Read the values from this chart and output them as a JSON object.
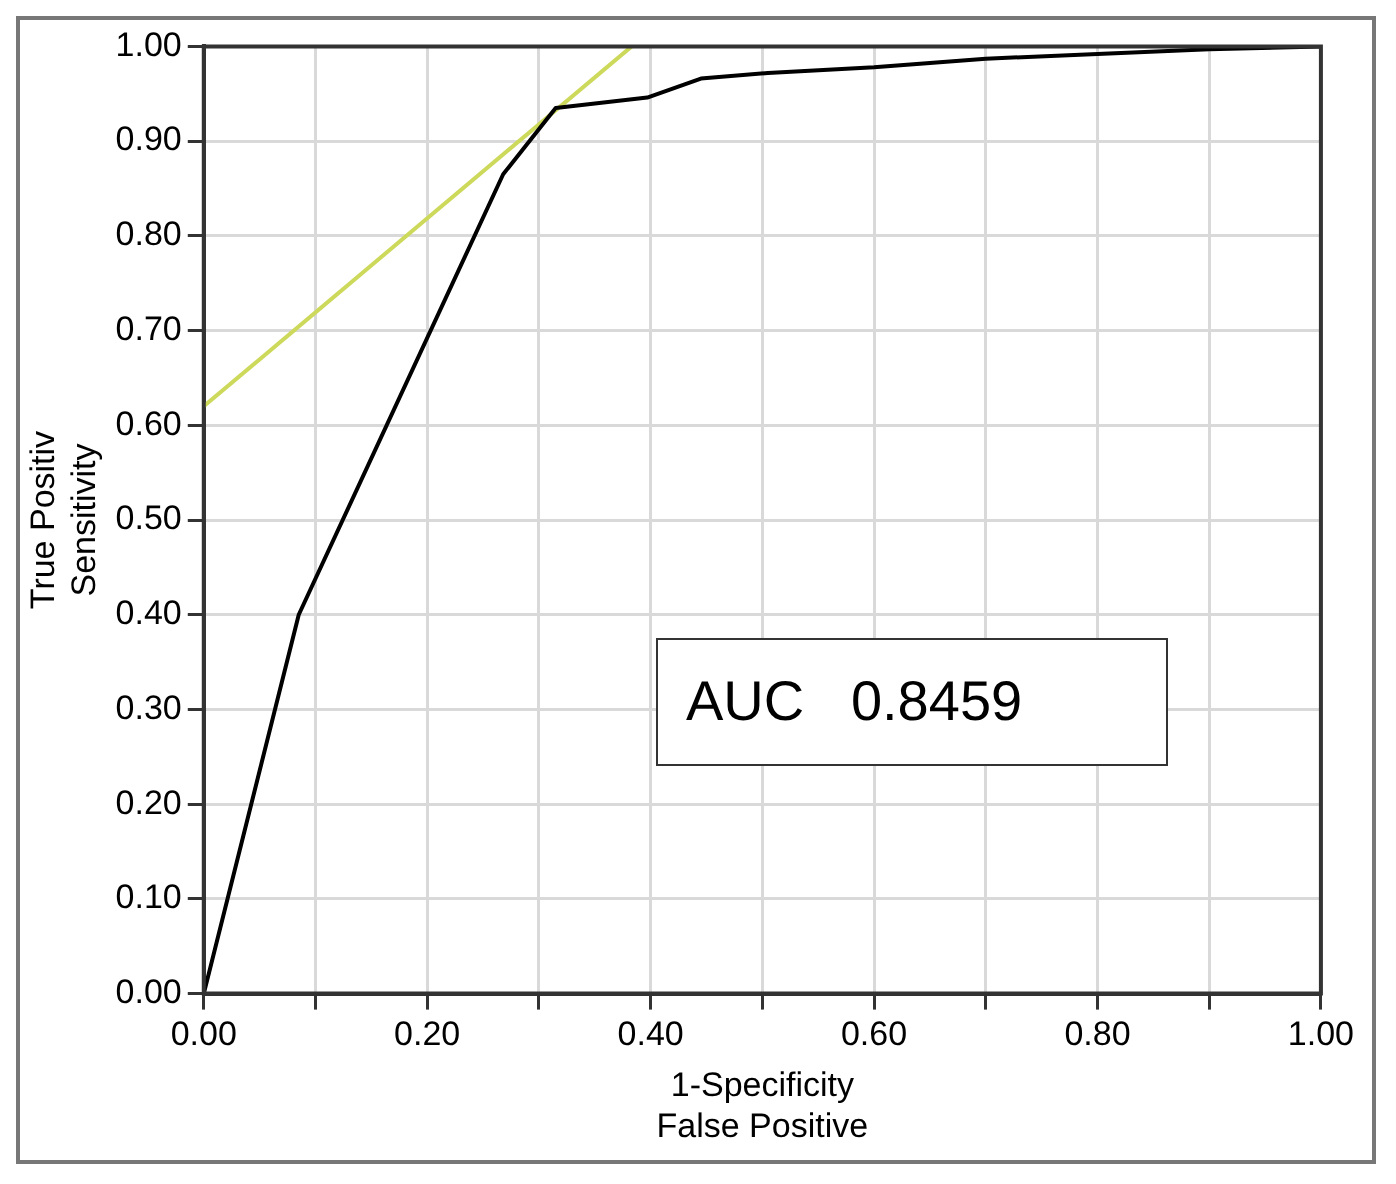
{
  "chart_data": {
    "type": "line",
    "xlabel": "1-Specificity\nFalse Positive",
    "ylabel": "True Positiv\nSensitivity",
    "xlim": [
      0,
      1
    ],
    "ylim": [
      0,
      1
    ],
    "xticks": [
      {
        "value": 0,
        "label": "0.00"
      },
      {
        "value": 0.1,
        "label": null
      },
      {
        "value": 0.2,
        "label": "0.20"
      },
      {
        "value": 0.3,
        "label": null
      },
      {
        "value": 0.4,
        "label": "0.40"
      },
      {
        "value": 0.5,
        "label": null
      },
      {
        "value": 0.6,
        "label": "0.60"
      },
      {
        "value": 0.7,
        "label": null
      },
      {
        "value": 0.8,
        "label": "0.80"
      },
      {
        "value": 0.9,
        "label": null
      },
      {
        "value": 1,
        "label": "1.00"
      }
    ],
    "yticks": [
      {
        "value": 0,
        "label": "0.00"
      },
      {
        "value": 0.1,
        "label": "0.10"
      },
      {
        "value": 0.2,
        "label": "0.20"
      },
      {
        "value": 0.3,
        "label": "0.30"
      },
      {
        "value": 0.4,
        "label": "0.40"
      },
      {
        "value": 0.5,
        "label": "0.50"
      },
      {
        "value": 0.6,
        "label": "0.60"
      },
      {
        "value": 0.7,
        "label": "0.70"
      },
      {
        "value": 0.8,
        "label": "0.80"
      },
      {
        "value": 0.9,
        "label": "0.90"
      },
      {
        "value": 1,
        "label": "1.00"
      }
    ],
    "grid": true,
    "legend": false,
    "marker": "none",
    "line_style": "solid",
    "series": [
      {
        "color": "#000000",
        "x": [
          0,
          0.085,
          0.268,
          0.315,
          0.397,
          0.445,
          0.505,
          0.6,
          0.7,
          0.8,
          0.9,
          1
        ],
        "values": [
          0,
          0.4,
          0.865,
          0.935,
          0.946,
          0.966,
          0.972,
          0.978,
          0.987,
          0.992,
          0.997,
          1
        ]
      },
      {
        "color": "#cdd95a",
        "x": [
          0,
          0.383
        ],
        "values": [
          0.62,
          1
        ]
      }
    ],
    "annotations": [
      "AUC   0.8459"
    ]
  }
}
